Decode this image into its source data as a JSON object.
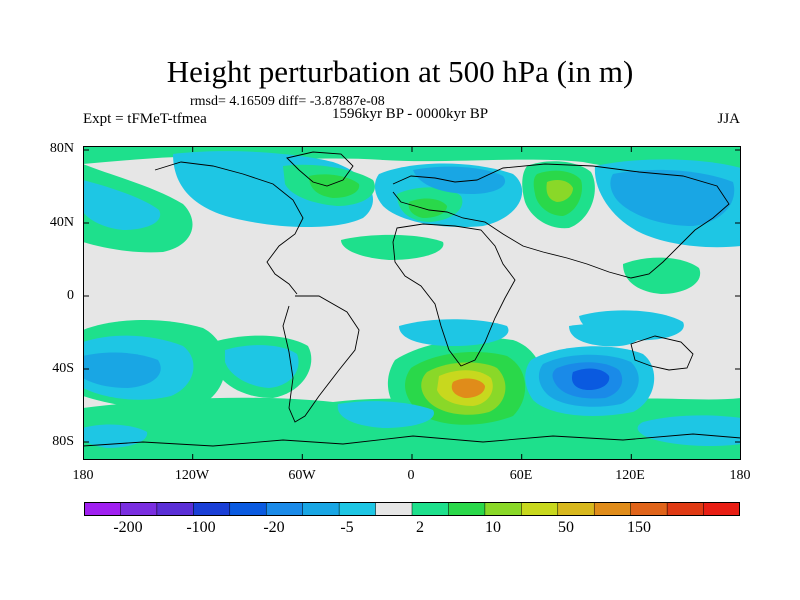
{
  "title": "Height perturbation at 500 hPa (in m)",
  "stats": "rmsd= 4.16509 diff= -3.87887e-08",
  "period": "1596kyr BP - 0000kyr BP",
  "experiment": "Expt = tFMeT-tfmea",
  "season": "JJA",
  "axes": {
    "lat_labels": [
      "80N",
      "40N",
      "0",
      "40S",
      "80S"
    ],
    "lon_labels": [
      "180",
      "120W",
      "60W",
      "0",
      "60E",
      "120E",
      "180"
    ]
  },
  "colorbar": {
    "labels": [
      "-200",
      "-100",
      "-20",
      "-5",
      "2",
      "10",
      "50",
      "150"
    ],
    "colors": [
      "#a020f0",
      "#7a2ee0",
      "#5a2fd6",
      "#1a3fd6",
      "#0a5ae0",
      "#1a8ae8",
      "#19a6e4",
      "#1ec6e4",
      "#e6e6e6",
      "#1ee08c",
      "#2ad84a",
      "#8ad828",
      "#c8d81e",
      "#d8b81e",
      "#e08c1a",
      "#e0641a",
      "#e03a14",
      "#e81e14"
    ]
  },
  "field_colors": {
    "neutral": "#e6e6e6",
    "neg_weak": "#1ec6e4",
    "neg_mid": "#19a6e4",
    "neg_strong": "#1a8ae8",
    "neg_deep": "#0a5ae0",
    "pos_weak": "#1ee08c",
    "pos_mid": "#2ad84a",
    "pos_strong": "#8ad828",
    "pos_deep": "#c8d81e",
    "pos_peak": "#e08c1a"
  }
}
